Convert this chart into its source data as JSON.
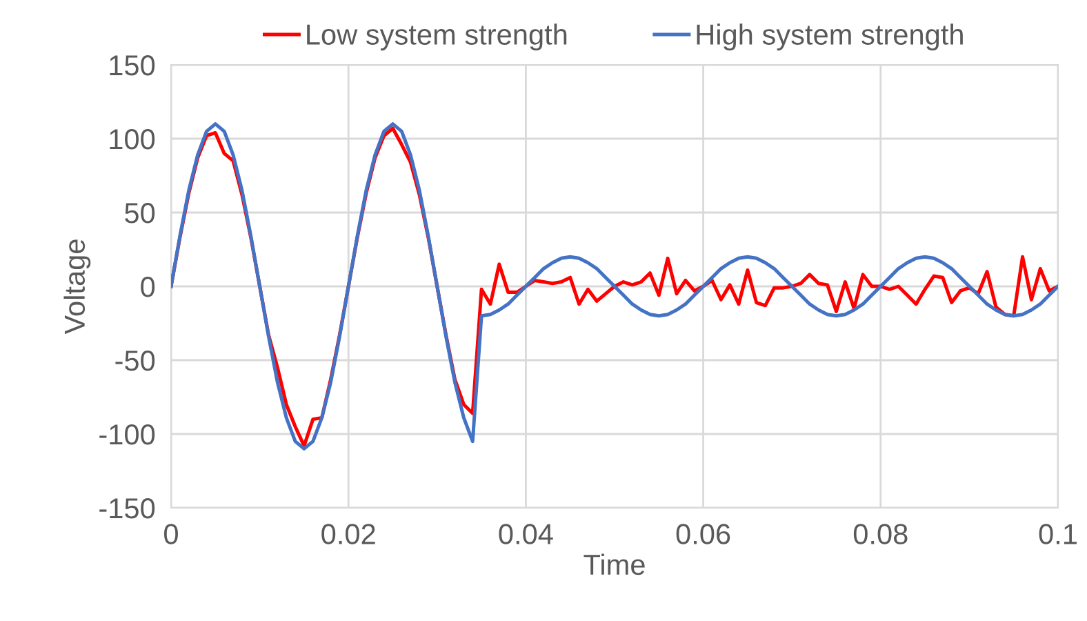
{
  "chart_data": {
    "type": "line",
    "xlabel": "Time",
    "ylabel": "Voltage",
    "x": [
      0,
      0.001,
      0.002,
      0.003,
      0.004,
      0.005,
      0.006,
      0.007,
      0.008,
      0.009,
      0.01,
      0.011,
      0.012,
      0.013,
      0.014,
      0.015,
      0.016,
      0.017,
      0.018,
      0.019,
      0.02,
      0.021,
      0.022,
      0.023,
      0.024,
      0.025,
      0.026,
      0.027,
      0.028,
      0.029,
      0.03,
      0.031,
      0.032,
      0.033,
      0.034,
      0.035,
      0.036,
      0.037,
      0.038,
      0.039,
      0.04,
      0.041,
      0.042,
      0.043,
      0.044,
      0.045,
      0.046,
      0.047,
      0.048,
      0.049,
      0.05,
      0.051,
      0.052,
      0.053,
      0.054,
      0.055,
      0.056,
      0.057,
      0.058,
      0.059,
      0.06,
      0.061,
      0.062,
      0.063,
      0.064,
      0.065,
      0.066,
      0.067,
      0.068,
      0.069,
      0.07,
      0.071,
      0.072,
      0.073,
      0.074,
      0.075,
      0.076,
      0.077,
      0.078,
      0.079,
      0.08,
      0.081,
      0.082,
      0.083,
      0.084,
      0.085,
      0.086,
      0.087,
      0.088,
      0.089,
      0.09,
      0.091,
      0.092,
      0.093,
      0.094,
      0.095,
      0.096,
      0.097,
      0.098,
      0.099,
      0.1
    ],
    "series": [
      {
        "name": "Low system strength",
        "color": "#ff0000",
        "values": [
          0,
          33,
          63,
          87,
          102,
          104,
          90,
          85,
          62,
          33,
          0,
          -33,
          -55,
          -80,
          -95,
          -108,
          -90,
          -89,
          -63,
          -33,
          0,
          33,
          63,
          87,
          102,
          107,
          96,
          84,
          62,
          33,
          0,
          -33,
          -63,
          -80,
          -86,
          -2,
          -12,
          15,
          -4,
          -4,
          0,
          4,
          3,
          2,
          3,
          6,
          -12,
          -2,
          -10,
          -5,
          0,
          3,
          1,
          3,
          9,
          -6,
          19,
          -5,
          4,
          -3,
          0,
          4,
          -9,
          1,
          -12,
          11,
          -11,
          -13,
          -1,
          -1,
          0,
          2,
          8,
          2,
          1,
          -17,
          3,
          -15,
          8,
          0,
          0,
          -2,
          0,
          -6,
          -12,
          -2,
          7,
          6,
          -11,
          -3,
          -1,
          -5,
          10,
          -14,
          -19,
          -20,
          20,
          -9,
          12,
          -3,
          0
        ]
      },
      {
        "name": "High system strength",
        "color": "#4472c4",
        "values": [
          0,
          34,
          65,
          89,
          105,
          110,
          105,
          89,
          65,
          34,
          0,
          -34,
          -65,
          -89,
          -105,
          -110,
          -105,
          -89,
          -65,
          -34,
          0,
          34,
          65,
          89,
          105,
          110,
          105,
          89,
          65,
          34,
          0,
          -34,
          -65,
          -89,
          -105,
          -20,
          -19,
          -16,
          -12,
          -6,
          0,
          6,
          12,
          16,
          19,
          20,
          19,
          16,
          12,
          6,
          0,
          -6,
          -12,
          -16,
          -19,
          -20,
          -19,
          -16,
          -12,
          -6,
          0,
          6,
          12,
          16,
          19,
          20,
          19,
          16,
          12,
          6,
          0,
          -6,
          -12,
          -16,
          -19,
          -20,
          -19,
          -16,
          -12,
          -6,
          0,
          6,
          12,
          16,
          19,
          20,
          19,
          16,
          12,
          6,
          0,
          -6,
          -12,
          -16,
          -19,
          -20,
          -19,
          -16,
          -12,
          -6,
          0
        ]
      }
    ],
    "xlim": [
      0,
      0.1
    ],
    "xticks": [
      0,
      0.02,
      0.04,
      0.06,
      0.08,
      0.1
    ],
    "ylim": [
      -150,
      150
    ],
    "yticks": [
      -150,
      -100,
      -50,
      0,
      50,
      100,
      150
    ],
    "grid": true,
    "legend": "top",
    "marker": "none",
    "line_style": "solid"
  }
}
